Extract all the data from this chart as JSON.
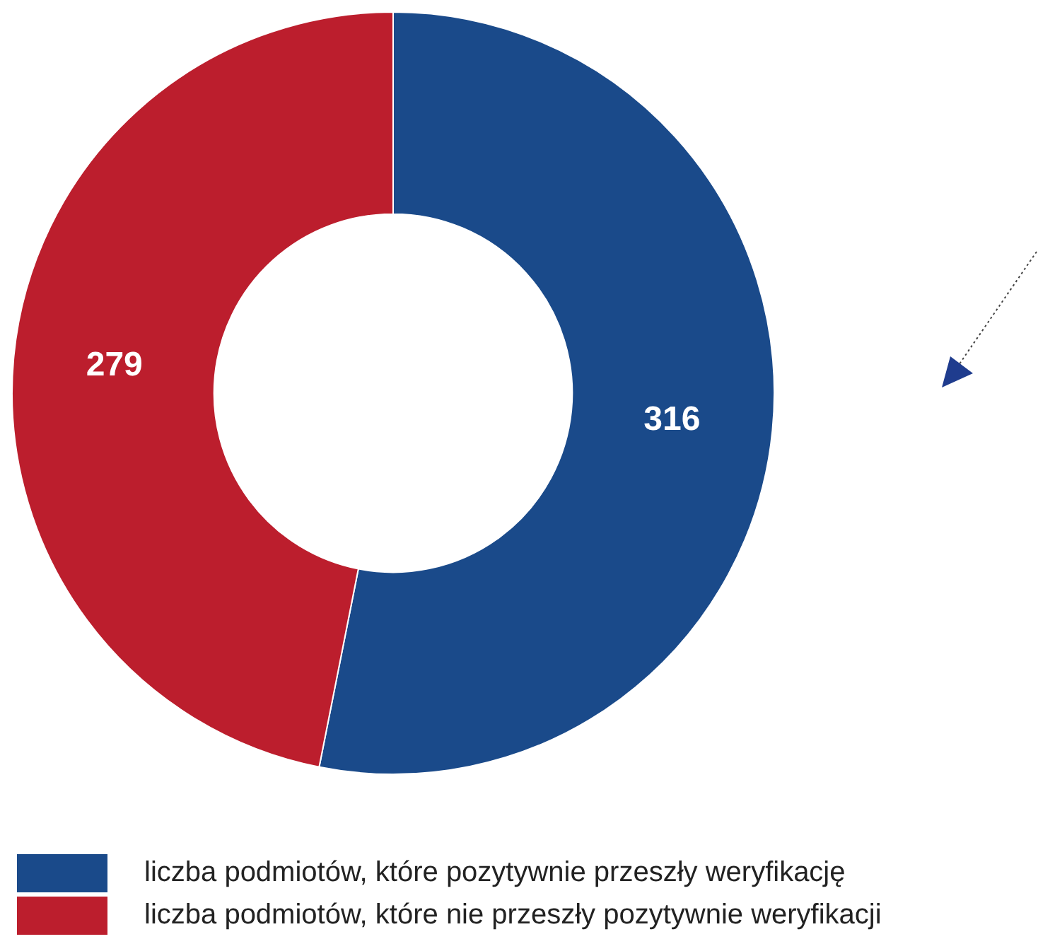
{
  "chart_data": {
    "type": "donut",
    "categories": [
      "liczba podmiotów, które pozytywnie przeszły weryfikację",
      "liczba podmiotów, które nie przeszły pozytywnie weryfikacji"
    ],
    "values": [
      316,
      279
    ],
    "colors": [
      "#1a4a8a",
      "#bc1e2d"
    ],
    "data_labels": true,
    "legend": "bottom"
  }
}
